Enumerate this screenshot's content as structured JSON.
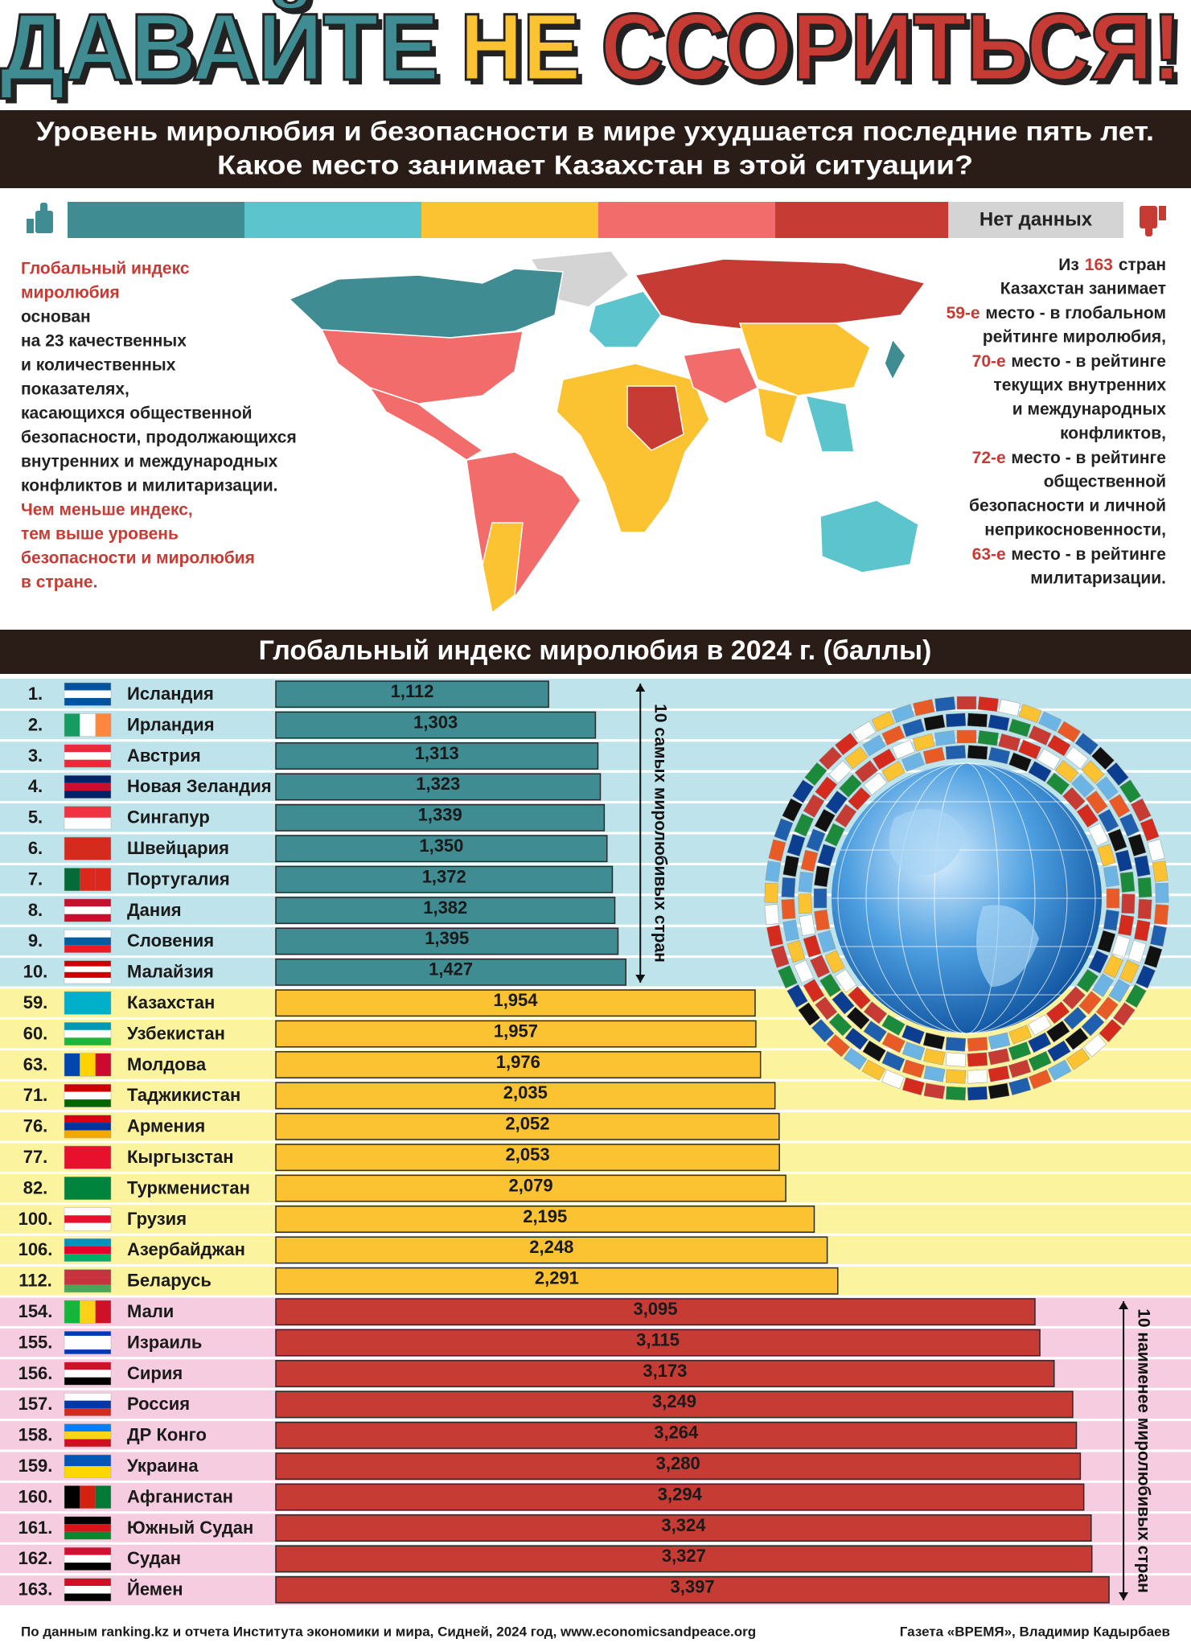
{
  "header": {
    "title_words": [
      "ДАВАЙТЕ",
      "НЕ",
      "ССОРИТЬСЯ!"
    ],
    "subtitle": [
      "Уровень миролюбия и безопасности в мире ухудшается последние пять лет.",
      "Какое место занимает Казахстан в этой ситуации?"
    ]
  },
  "legend": {
    "no_data": "Нет данных"
  },
  "map_left": [
    "Глобальный индекс",
    "миролюбия",
    "основан",
    "на 23 качественных",
    "и количественных",
    "показателях,",
    "касающихся общественной",
    "безопасности, продолжающихся",
    "внутренних и международных",
    "конфликтов и милитаризации.",
    "Чем меньше индекс,",
    "тем выше уровень",
    "безопасности и миролюбия",
    "в стране."
  ],
  "map_right": [
    [
      "Из",
      "163",
      "стран"
    ],
    [
      "Казахстан занимает"
    ],
    [
      "59-е",
      "место - в глобальном"
    ],
    [
      "рейтинге миролюбия,"
    ],
    [
      "70-е",
      "место - в рейтинге"
    ],
    [
      "текущих внутренних"
    ],
    [
      "и международных"
    ],
    [
      "конфликтов,"
    ],
    [
      "72-е",
      "место - в рейтинге"
    ],
    [
      "общественной"
    ],
    [
      "безопасности и личной"
    ],
    [
      "неприкосновенности,"
    ],
    [
      "63-е",
      "место - в рейтинге"
    ],
    [
      "милитаризации."
    ]
  ],
  "chart_data": {
    "type": "bar",
    "orientation": "horizontal",
    "title": "Глобальный индекс миролюбия в 2024 г. (баллы)",
    "xlim": [
      0,
      3.4
    ],
    "groups": [
      {
        "label": "10 самых миролюбивых стран",
        "color": "#3f8c93",
        "background": "#bfe3ea",
        "ranks": [
          "1.",
          "2.",
          "3.",
          "4.",
          "5.",
          "6.",
          "7.",
          "8.",
          "9.",
          "10."
        ],
        "categories": [
          "Исландия",
          "Ирландия",
          "Австрия",
          "Новая Зеландия",
          "Сингапур",
          "Швейцария",
          "Португалия",
          "Дания",
          "Словения",
          "Малайзия"
        ],
        "values": [
          1.112,
          1.303,
          1.313,
          1.323,
          1.339,
          1.35,
          1.372,
          1.382,
          1.395,
          1.427
        ],
        "value_labels": [
          "1,112",
          "1,303",
          "1,313",
          "1,323",
          "1,339",
          "1,350",
          "1,372",
          "1,382",
          "1,395",
          "1,427"
        ]
      },
      {
        "color": "#fbc232",
        "background": "#fbf39e",
        "ranks": [
          "59.",
          "60.",
          "63.",
          "71.",
          "76.",
          "77.",
          "82.",
          "100.",
          "106.",
          "112."
        ],
        "categories": [
          "Казахстан",
          "Узбекистан",
          "Молдова",
          "Таджикистан",
          "Армения",
          "Кыргызстан",
          "Туркменистан",
          "Грузия",
          "Азербайджан",
          "Беларусь"
        ],
        "values": [
          1.954,
          1.957,
          1.976,
          2.035,
          2.052,
          2.053,
          2.079,
          2.195,
          2.248,
          2.291
        ],
        "value_labels": [
          "1,954",
          "1,957",
          "1,976",
          "2,035",
          "2,052",
          "2,053",
          "2,079",
          "2,195",
          "2,248",
          "2,291"
        ]
      },
      {
        "label": "10 наименее миролюбивых стран",
        "color": "#c63b34",
        "background": "#f6cde0",
        "ranks": [
          "154.",
          "155.",
          "156.",
          "157.",
          "158.",
          "159.",
          "160.",
          "161.",
          "162.",
          "163."
        ],
        "categories": [
          "Мали",
          "Израиль",
          "Сирия",
          "Россия",
          "ДР Конго",
          "Украина",
          "Афганистан",
          "Южный Судан",
          "Судан",
          "Йемен"
        ],
        "values": [
          3.095,
          3.115,
          3.173,
          3.249,
          3.264,
          3.28,
          3.294,
          3.324,
          3.327,
          3.397
        ],
        "value_labels": [
          "3,095",
          "3,115",
          "3,173",
          "3,249",
          "3,264",
          "3,280",
          "3,294",
          "3,324",
          "3,327",
          "3,397"
        ]
      }
    ]
  },
  "footer": {
    "source": "По данным ranking.kz и отчета Института экономики и мира, Сидней, 2024 год, www.economicsandpeace.org",
    "credit": "Газета «ВРЕМЯ», Владимир Кадырбаев"
  }
}
